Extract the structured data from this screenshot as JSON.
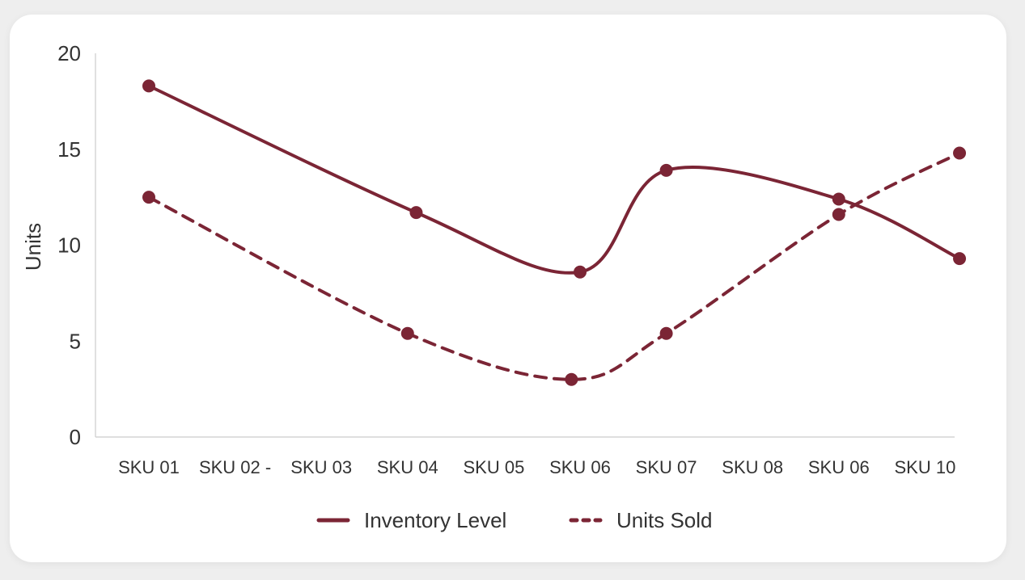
{
  "colors": {
    "series": "#7b2535",
    "axis": "#cccccc",
    "text": "#333333"
  },
  "chart_data": {
    "type": "line",
    "title": "",
    "xlabel": "",
    "ylabel": "Units",
    "ylim": [
      0,
      20
    ],
    "yticks": [
      0,
      5,
      10,
      15,
      20
    ],
    "grid": false,
    "legend_position": "bottom-center",
    "categories": [
      "SKU 01",
      "SKU 02 -",
      "SKU 03",
      "SKU 04",
      "SKU 05",
      "SKU 06",
      "SKU 07",
      "SKU 08",
      "SKU 06",
      "SKU 10"
    ],
    "series": [
      {
        "name": "Inventory Level",
        "style": "solid",
        "points": [
          {
            "category_index": 0,
            "value": 18.3
          },
          {
            "category_index": 3.1,
            "value": 11.7
          },
          {
            "category_index": 5.0,
            "value": 8.6
          },
          {
            "category_index": 6.0,
            "value": 13.9
          },
          {
            "category_index": 8.0,
            "value": 12.4
          },
          {
            "category_index": 9.4,
            "value": 9.3
          }
        ]
      },
      {
        "name": "Units Sold",
        "style": "dashed",
        "points": [
          {
            "category_index": 0,
            "value": 12.5
          },
          {
            "category_index": 3.0,
            "value": 5.4
          },
          {
            "category_index": 4.9,
            "value": 3.0
          },
          {
            "category_index": 6.0,
            "value": 5.4
          },
          {
            "category_index": 8.0,
            "value": 11.6
          },
          {
            "category_index": 9.4,
            "value": 14.8
          }
        ]
      }
    ]
  }
}
